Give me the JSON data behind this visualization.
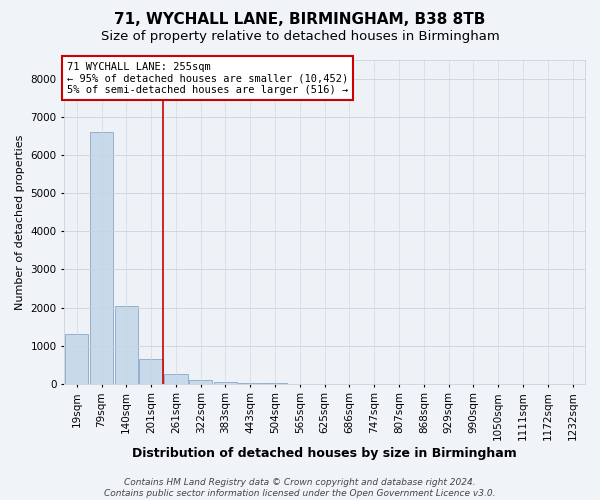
{
  "title1": "71, WYCHALL LANE, BIRMINGHAM, B38 8TB",
  "title2": "Size of property relative to detached houses in Birmingham",
  "xlabel": "Distribution of detached houses by size in Birmingham",
  "ylabel": "Number of detached properties",
  "categories": [
    "19sqm",
    "79sqm",
    "140sqm",
    "201sqm",
    "261sqm",
    "322sqm",
    "383sqm",
    "443sqm",
    "504sqm",
    "565sqm",
    "625sqm",
    "686sqm",
    "747sqm",
    "807sqm",
    "868sqm",
    "929sqm",
    "990sqm",
    "1050sqm",
    "1111sqm",
    "1172sqm",
    "1232sqm"
  ],
  "values": [
    1300,
    6600,
    2050,
    650,
    250,
    100,
    50,
    10,
    5,
    2,
    0,
    0,
    0,
    0,
    0,
    0,
    0,
    0,
    0,
    0,
    0
  ],
  "bar_color": "#c8d9ea",
  "bar_edge_color": "#89a8c8",
  "red_line_x": 3.5,
  "ylim": [
    0,
    8500
  ],
  "yticks": [
    0,
    1000,
    2000,
    3000,
    4000,
    5000,
    6000,
    7000,
    8000
  ],
  "annotation_text": "71 WYCHALL LANE: 255sqm\n← 95% of detached houses are smaller (10,452)\n5% of semi-detached houses are larger (516) →",
  "footer": "Contains HM Land Registry data © Crown copyright and database right 2024.\nContains public sector information licensed under the Open Government Licence v3.0.",
  "bg_color": "#f0f4f8",
  "plot_bg_color": "#eef2f7",
  "grid_color": "#c8d4e0",
  "red_color": "#cc0000",
  "annotation_box_color": "#ffffff",
  "title1_fontsize": 11,
  "title2_fontsize": 9.5,
  "xlabel_fontsize": 9,
  "ylabel_fontsize": 8,
  "tick_fontsize": 7.5,
  "annotation_fontsize": 7.5,
  "footer_fontsize": 6.5
}
